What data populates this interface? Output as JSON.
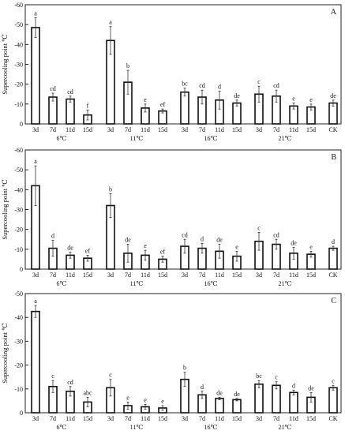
{
  "chart_data": [
    {
      "type": "bar",
      "panel_label": "A",
      "ylabel": "Supercooling point ℃",
      "ylim": [
        -60,
        0
      ],
      "y_ticks": [
        "-60",
        "-50",
        "-40",
        "-30",
        "-20",
        "-10",
        "0"
      ],
      "y_axis_inverted": true,
      "groups": [
        {
          "label": "6℃",
          "categories": [
            "3d",
            "7d",
            "11d",
            "15d"
          ],
          "values": [
            -48.5,
            -13.5,
            -12.5,
            -4.5
          ],
          "errors": [
            5.0,
            2.0,
            1.5,
            2.5
          ],
          "letters": [
            "a",
            "cd",
            "cd",
            "f"
          ]
        },
        {
          "label": "11℃",
          "categories": [
            "3d",
            "7d",
            "11d",
            "15d"
          ],
          "values": [
            -42.0,
            -21.0,
            -8.0,
            -6.5
          ],
          "errors": [
            7.0,
            6.0,
            2.0,
            1.0
          ],
          "letters": [
            "a",
            "b",
            "e",
            "ef"
          ]
        },
        {
          "label": "16℃",
          "categories": [
            "3d",
            "7d",
            "11d",
            "15d"
          ],
          "values": [
            -16.0,
            -13.5,
            -12.0,
            -10.5
          ],
          "errors": [
            2.0,
            3.5,
            4.5,
            1.5
          ],
          "letters": [
            "bc",
            "cd",
            "d",
            "de"
          ]
        },
        {
          "label": "21℃",
          "categories": [
            "3d",
            "7d",
            "11d",
            "15d"
          ],
          "values": [
            -15.0,
            -14.0,
            -9.0,
            -8.5
          ],
          "errors": [
            4.0,
            3.0,
            1.5,
            1.5
          ],
          "letters": [
            "c",
            "cd",
            "e",
            "e"
          ]
        },
        {
          "label": "",
          "categories": [
            "CK"
          ],
          "values": [
            -10.5
          ],
          "errors": [
            1.5
          ],
          "letters": [
            "de"
          ]
        }
      ]
    },
    {
      "type": "bar",
      "panel_label": "B",
      "ylabel": "Supercooling point ℃",
      "ylim": [
        -60,
        0
      ],
      "y_ticks": [
        "-60",
        "-50",
        "-40",
        "-30",
        "-20",
        "-10",
        "0"
      ],
      "y_axis_inverted": true,
      "groups": [
        {
          "label": "6℃",
          "categories": [
            "3d",
            "7d",
            "11d",
            "15d"
          ],
          "values": [
            -42.0,
            -10.5,
            -7.0,
            -5.5
          ],
          "errors": [
            10.0,
            4.0,
            1.5,
            1.5
          ],
          "letters": [
            "a",
            "d",
            "de",
            "ef"
          ]
        },
        {
          "label": "11℃",
          "categories": [
            "3d",
            "7d",
            "11d",
            "15d"
          ],
          "values": [
            -32.0,
            -8.0,
            -7.0,
            -5.0
          ],
          "errors": [
            6.0,
            4.5,
            2.5,
            1.5
          ],
          "letters": [
            "b",
            "de",
            "e",
            "ef"
          ]
        },
        {
          "label": "16℃",
          "categories": [
            "3d",
            "7d",
            "11d",
            "15d"
          ],
          "values": [
            -11.5,
            -10.5,
            -9.0,
            -6.5
          ],
          "errors": [
            3.5,
            2.5,
            3.5,
            2.5
          ],
          "letters": [
            "cd",
            "d",
            "de",
            "e"
          ]
        },
        {
          "label": "21℃",
          "categories": [
            "3d",
            "7d",
            "11d",
            "15d"
          ],
          "values": [
            -14.0,
            -12.5,
            -8.0,
            -7.5
          ],
          "errors": [
            4.5,
            2.5,
            3.0,
            1.5
          ],
          "letters": [
            "c",
            "cd",
            "de",
            "e"
          ]
        },
        {
          "label": "",
          "categories": [
            "CK"
          ],
          "values": [
            -10.5
          ],
          "errors": [
            1.0
          ],
          "letters": [
            "d"
          ]
        }
      ]
    },
    {
      "type": "bar",
      "panel_label": "C",
      "ylabel": "Supercooling point ℃",
      "ylim": [
        -50,
        0
      ],
      "y_ticks": [
        "-50",
        "-40",
        "-30",
        "-20",
        "-10",
        "0"
      ],
      "y_axis_inverted": true,
      "groups": [
        {
          "label": "6℃",
          "categories": [
            "3d",
            "7d",
            "11d",
            "15d"
          ],
          "values": [
            -42.5,
            -11.0,
            -9.0,
            -4.5
          ],
          "errors": [
            2.5,
            2.5,
            2.0,
            2.0
          ],
          "letters": [
            "a",
            "c",
            "cd",
            "abc"
          ]
        },
        {
          "label": "11℃",
          "categories": [
            "3d",
            "7d",
            "11d",
            "15d"
          ],
          "values": [
            -10.5,
            -3.0,
            -2.5,
            -2.0
          ],
          "errors": [
            3.5,
            1.5,
            1.0,
            1.0
          ],
          "letters": [
            "c",
            "e",
            "e",
            "e"
          ]
        },
        {
          "label": "16℃",
          "categories": [
            "3d",
            "7d",
            "11d",
            "15d"
          ],
          "values": [
            -14.0,
            -7.5,
            -6.0,
            -5.5
          ],
          "errors": [
            3.0,
            1.5,
            0.5,
            0.5
          ],
          "letters": [
            "b",
            "d",
            "de",
            "de"
          ]
        },
        {
          "label": "21℃",
          "categories": [
            "3d",
            "7d",
            "11d",
            "15d"
          ],
          "values": [
            -12.0,
            -11.5,
            -8.5,
            -6.5
          ],
          "errors": [
            1.5,
            1.5,
            1.0,
            2.0
          ],
          "letters": [
            "bc",
            "c",
            "d",
            "de"
          ]
        },
        {
          "label": "",
          "categories": [
            "CK"
          ],
          "values": [
            -10.5
          ],
          "errors": [
            1.0
          ],
          "letters": [
            "c"
          ]
        }
      ]
    }
  ]
}
